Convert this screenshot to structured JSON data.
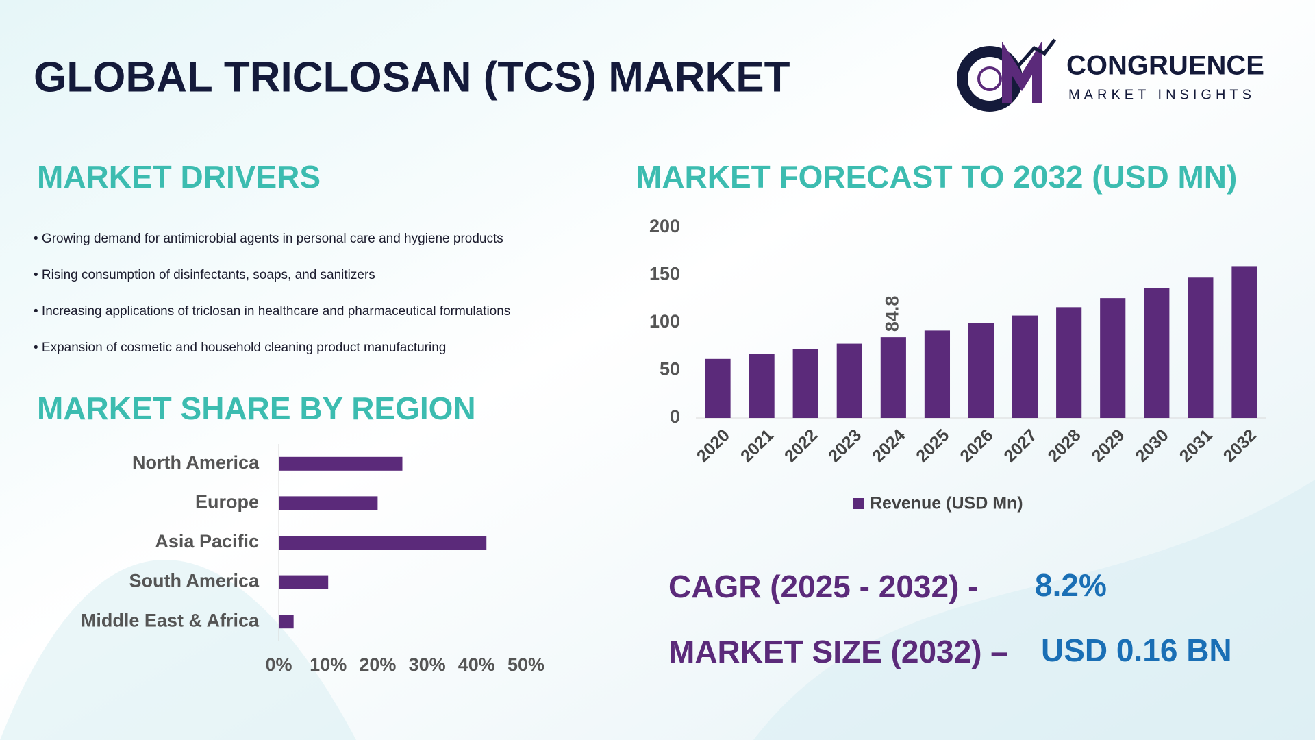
{
  "title": "GLOBAL TRICLOSAN (TCS) MARKET",
  "logo": {
    "name": "CONGRUENCE",
    "tagline": "MARKET INSIGHTS"
  },
  "drivers": {
    "heading": "MARKET DRIVERS",
    "items": [
      "• Growing demand for antimicrobial agents in personal care and hygiene products",
      "• Rising consumption of disinfectants, soaps, and sanitizers",
      "• Increasing applications of triclosan in healthcare and pharmaceutical formulations",
      "• Expansion of cosmetic and household cleaning product manufacturing"
    ]
  },
  "cagr": {
    "label": "CAGR (2025 - 2032) -",
    "value": "8.2%"
  },
  "market_size": {
    "label": "MARKET SIZE (2032) –",
    "value": "USD 0.16 BN"
  },
  "chart_data": [
    {
      "type": "bar",
      "title": "MARKET FORECAST TO 2032 (USD MN)",
      "categories": [
        "2020",
        "2021",
        "2022",
        "2023",
        "2024",
        "2025",
        "2026",
        "2027",
        "2028",
        "2029",
        "2030",
        "2031",
        "2032"
      ],
      "series": [
        {
          "name": "Revenue (USD Mn)",
          "color": "#5b2a7a",
          "values": [
            62,
            67,
            72,
            78,
            84.8,
            91.8,
            99.3,
            107.5,
            116.3,
            125.8,
            136.2,
            147.3,
            159.4
          ],
          "value_labels": [
            null,
            null,
            null,
            null,
            "84.8",
            null,
            null,
            null,
            null,
            null,
            null,
            null,
            null
          ]
        }
      ],
      "ylim": [
        0,
        200
      ],
      "yticks": [
        0,
        50,
        100,
        150,
        200
      ],
      "grid": false,
      "legend": "bottom"
    },
    {
      "type": "barh",
      "title": "MARKET SHARE BY REGION",
      "categories": [
        "North America",
        "Europe",
        "Asia Pacific",
        "South America",
        "Middle East & Africa"
      ],
      "values": [
        25,
        20,
        42,
        10,
        3
      ],
      "color": "#5b2a7a",
      "xlim": [
        0,
        50
      ],
      "xticks": [
        {
          "value": 0,
          "label": "0%"
        },
        {
          "value": 10,
          "label": "10%"
        },
        {
          "value": 20,
          "label": "20%"
        },
        {
          "value": 30,
          "label": "30%"
        },
        {
          "value": 40,
          "label": "40%"
        },
        {
          "value": 50,
          "label": "50%"
        }
      ],
      "grid": false
    }
  ]
}
